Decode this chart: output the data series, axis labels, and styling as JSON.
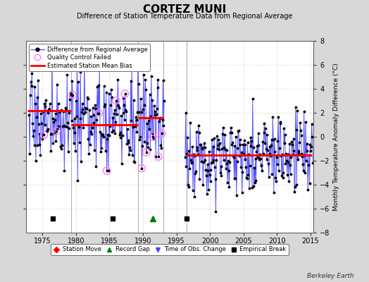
{
  "title": "CORTEZ MUNI",
  "subtitle": "Difference of Station Temperature Data from Regional Average",
  "ylabel_right": "Monthly Temperature Anomaly Difference (°C)",
  "xlim": [
    1972.5,
    2015.5
  ],
  "ylim": [
    -8,
    8
  ],
  "yticks": [
    -6,
    -4,
    -2,
    0,
    2,
    4,
    6
  ],
  "yticks_outer": [
    -8,
    -6,
    -4,
    -2,
    0,
    2,
    4,
    6,
    8
  ],
  "xticks": [
    1975,
    1980,
    1985,
    1990,
    1995,
    2000,
    2005,
    2010,
    2015
  ],
  "background_color": "#d8d8d8",
  "plot_bg_color": "#ffffff",
  "line_color": "#5555ff",
  "marker_color": "#000000",
  "qc_fail_color": "#ff77ff",
  "bias_color": "#ff0000",
  "bias_segments": [
    {
      "x_start": 1972.7,
      "x_end": 1979.3,
      "y": 2.2
    },
    {
      "x_start": 1979.3,
      "x_end": 1989.3,
      "y": 1.0
    },
    {
      "x_start": 1989.3,
      "x_end": 1993.0,
      "y": 1.6
    },
    {
      "x_start": 1996.5,
      "x_end": 2015.3,
      "y": -1.5
    }
  ],
  "empirical_breaks": [
    1976.5,
    1985.5,
    1996.5
  ],
  "record_gaps": [
    1991.5
  ],
  "obs_changes": [],
  "station_moves": [],
  "gap_start": 1993.2,
  "gap_end": 1996.3,
  "footnote": "Berkeley Earth",
  "seed": 17,
  "pre_mean": 1.3,
  "pre_std": 1.8,
  "post_mean": -1.5,
  "post_std": 1.5,
  "qc_times": [
    1975.2,
    1977.1,
    1979.5,
    1983.4,
    1984.6,
    1986.0,
    1987.3,
    1989.8,
    1990.5,
    1991.5,
    1992.3,
    1992.8
  ],
  "vlines": [
    1979.3,
    1989.3,
    1993.0,
    1996.5
  ]
}
